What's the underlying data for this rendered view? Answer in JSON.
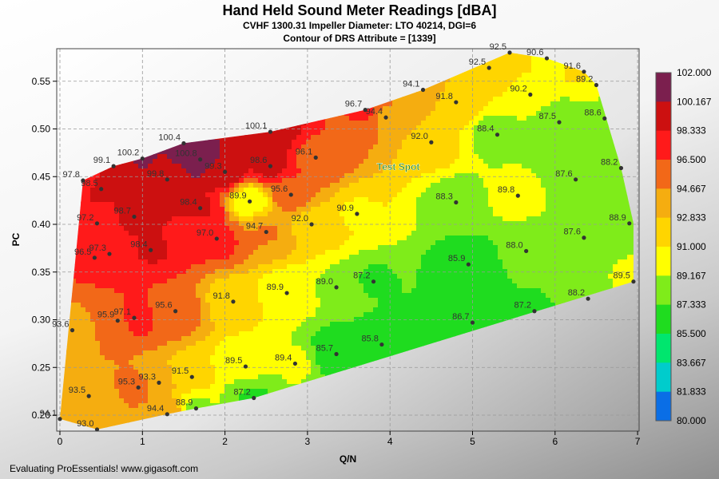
{
  "header": {
    "title": "Hand Held Sound Meter Readings [dBA]",
    "subtitle1": "CVHF 1300.31 Impeller Diameter: LTO 40214, DGI=6",
    "subtitle2": "Contour of DRS Attribute = [1339]"
  },
  "footer": {
    "text": "Evaluating ProEssentials! www.gigasoft.com"
  },
  "chart_data": {
    "type": "contour",
    "xlabel": "Q/N",
    "ylabel": "PC",
    "xlim": [
      0,
      7
    ],
    "ylim": [
      0.18,
      0.585
    ],
    "x_ticks": [
      "0",
      "1",
      "2",
      "3",
      "4",
      "5",
      "6",
      "7"
    ],
    "y_ticks": [
      "0.20",
      "0.25",
      "0.30",
      "0.35",
      "0.40",
      "0.45",
      "0.50",
      "0.55"
    ],
    "grid": true,
    "annotation": {
      "text": "Test Spot",
      "x": 4.1,
      "y": 0.457
    },
    "legend": {
      "placement": "right",
      "levels": [
        {
          "label": "102.000",
          "color": "#7b1f4e"
        },
        {
          "label": "100.167",
          "color": "#cc1010"
        },
        {
          "label": "98.333",
          "color": "#ff1a1a"
        },
        {
          "label": "96.500",
          "color": "#f26818"
        },
        {
          "label": "94.667",
          "color": "#f5ad10"
        },
        {
          "label": "92.833",
          "color": "#ffd500"
        },
        {
          "label": "91.000",
          "color": "#ffff00"
        },
        {
          "label": "89.167",
          "color": "#7fec1a"
        },
        {
          "label": "87.333",
          "color": "#1fdc1f"
        },
        {
          "label": "85.500",
          "color": "#00e66e"
        },
        {
          "label": "83.667",
          "color": "#00cccc"
        },
        {
          "label": "81.833",
          "color": "#0a6ee6"
        },
        {
          "label": "80.000",
          "color": "#0a1ef5"
        }
      ]
    },
    "points": [
      {
        "x": 0.28,
        "y": 0.446,
        "v": "97.8"
      },
      {
        "x": 0.65,
        "y": 0.461,
        "v": "99.1"
      },
      {
        "x": 1.0,
        "y": 0.469,
        "v": "100.2"
      },
      {
        "x": 1.5,
        "y": 0.485,
        "v": "100.4"
      },
      {
        "x": 1.7,
        "y": 0.468,
        "v": "100.8"
      },
      {
        "x": 2.55,
        "y": 0.497,
        "v": "100.1"
      },
      {
        "x": 0.5,
        "y": 0.437,
        "v": "98.5"
      },
      {
        "x": 1.3,
        "y": 0.447,
        "v": "99.8"
      },
      {
        "x": 2.0,
        "y": 0.455,
        "v": "99.3"
      },
      {
        "x": 2.55,
        "y": 0.461,
        "v": "98.6"
      },
      {
        "x": 3.7,
        "y": 0.52,
        "v": "96.7"
      },
      {
        "x": 3.1,
        "y": 0.47,
        "v": "96.1"
      },
      {
        "x": 0.45,
        "y": 0.401,
        "v": "97.2"
      },
      {
        "x": 0.9,
        "y": 0.408,
        "v": "98.7"
      },
      {
        "x": 1.7,
        "y": 0.417,
        "v": "98.4"
      },
      {
        "x": 2.3,
        "y": 0.424,
        "v": "89.9"
      },
      {
        "x": 2.8,
        "y": 0.431,
        "v": "95.6"
      },
      {
        "x": 0.6,
        "y": 0.369,
        "v": "97.3"
      },
      {
        "x": 1.1,
        "y": 0.373,
        "v": "98.4"
      },
      {
        "x": 1.9,
        "y": 0.385,
        "v": "97.0"
      },
      {
        "x": 2.5,
        "y": 0.392,
        "v": "94.7"
      },
      {
        "x": 3.05,
        "y": 0.4,
        "v": "92.0"
      },
      {
        "x": 0.42,
        "y": 0.365,
        "v": "96.5"
      },
      {
        "x": 3.6,
        "y": 0.411,
        "v": "90.9"
      },
      {
        "x": 4.4,
        "y": 0.541,
        "v": "94.1"
      },
      {
        "x": 3.95,
        "y": 0.512,
        "v": "94.4"
      },
      {
        "x": 4.5,
        "y": 0.486,
        "v": "92.0"
      },
      {
        "x": 5.2,
        "y": 0.564,
        "v": "92.5"
      },
      {
        "x": 5.45,
        "y": 0.58,
        "v": "92.5"
      },
      {
        "x": 5.9,
        "y": 0.574,
        "v": "90.6"
      },
      {
        "x": 6.35,
        "y": 0.56,
        "v": "91.6"
      },
      {
        "x": 6.5,
        "y": 0.546,
        "v": "89.2"
      },
      {
        "x": 4.8,
        "y": 0.528,
        "v": "91.8"
      },
      {
        "x": 5.7,
        "y": 0.536,
        "v": "90.2"
      },
      {
        "x": 5.3,
        "y": 0.494,
        "v": "88.4"
      },
      {
        "x": 6.05,
        "y": 0.507,
        "v": "87.5"
      },
      {
        "x": 6.6,
        "y": 0.511,
        "v": "88.6"
      },
      {
        "x": 6.8,
        "y": 0.459,
        "v": "88.2"
      },
      {
        "x": 6.25,
        "y": 0.447,
        "v": "87.6"
      },
      {
        "x": 5.55,
        "y": 0.43,
        "v": "89.8"
      },
      {
        "x": 4.8,
        "y": 0.423,
        "v": "88.3"
      },
      {
        "x": 6.9,
        "y": 0.401,
        "v": "88.9"
      },
      {
        "x": 6.35,
        "y": 0.386,
        "v": "87.6"
      },
      {
        "x": 5.65,
        "y": 0.372,
        "v": "88.0"
      },
      {
        "x": 4.95,
        "y": 0.358,
        "v": "85.9"
      },
      {
        "x": 6.95,
        "y": 0.34,
        "v": "89.5"
      },
      {
        "x": 6.4,
        "y": 0.322,
        "v": "88.2"
      },
      {
        "x": 5.75,
        "y": 0.309,
        "v": "87.2"
      },
      {
        "x": 5.0,
        "y": 0.297,
        "v": "86.7"
      },
      {
        "x": 3.35,
        "y": 0.334,
        "v": "89.0"
      },
      {
        "x": 3.8,
        "y": 0.34,
        "v": "87.2"
      },
      {
        "x": 2.75,
        "y": 0.328,
        "v": "89.9"
      },
      {
        "x": 2.1,
        "y": 0.319,
        "v": "91.8"
      },
      {
        "x": 0.15,
        "y": 0.289,
        "v": "93.6"
      },
      {
        "x": 0.7,
        "y": 0.299,
        "v": "95.9"
      },
      {
        "x": 0.9,
        "y": 0.302,
        "v": "97.1"
      },
      {
        "x": 1.4,
        "y": 0.309,
        "v": "95.6"
      },
      {
        "x": 3.9,
        "y": 0.274,
        "v": "85.8"
      },
      {
        "x": 3.35,
        "y": 0.264,
        "v": "85.7"
      },
      {
        "x": 2.85,
        "y": 0.254,
        "v": "89.4"
      },
      {
        "x": 2.25,
        "y": 0.251,
        "v": "89.5"
      },
      {
        "x": 1.6,
        "y": 0.24,
        "v": "91.5"
      },
      {
        "x": 1.2,
        "y": 0.234,
        "v": "93.3"
      },
      {
        "x": 0.95,
        "y": 0.229,
        "v": "95.3"
      },
      {
        "x": 0.35,
        "y": 0.22,
        "v": "93.5"
      },
      {
        "x": 2.35,
        "y": 0.218,
        "v": "87.2"
      },
      {
        "x": 1.65,
        "y": 0.207,
        "v": "88.9"
      },
      {
        "x": 1.3,
        "y": 0.201,
        "v": "94.4"
      },
      {
        "x": 0.0,
        "y": 0.196,
        "v": "94.1"
      },
      {
        "x": 0.45,
        "y": 0.185,
        "v": "93.0"
      }
    ]
  }
}
